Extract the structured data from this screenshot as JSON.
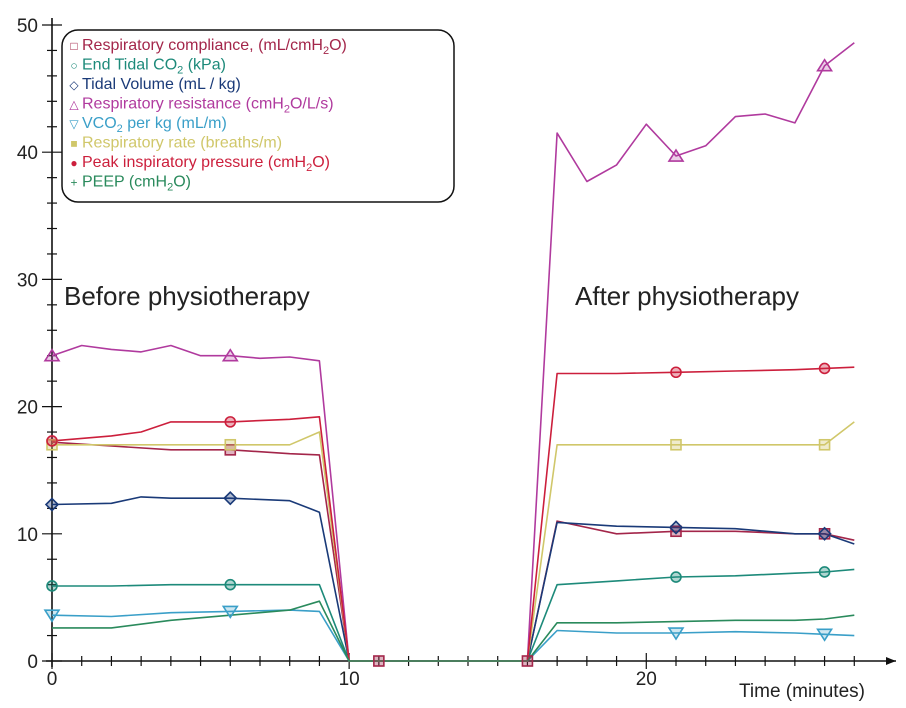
{
  "chart_data": {
    "type": "line",
    "xlabel": "Time (minutes)",
    "ylabel": "",
    "xlim": [
      0,
      28
    ],
    "ylim": [
      0,
      50
    ],
    "x_tick_labels": [
      {
        "value": 0,
        "label": "0"
      },
      {
        "value": 10,
        "label": "10"
      },
      {
        "value": 20,
        "label": "20"
      }
    ],
    "y_tick_labels": [
      {
        "value": 0,
        "label": "0"
      },
      {
        "value": 10,
        "label": "10"
      },
      {
        "value": 20,
        "label": "20"
      },
      {
        "value": 30,
        "label": "30"
      },
      {
        "value": 40,
        "label": "40"
      },
      {
        "value": 50,
        "label": "50"
      }
    ],
    "annotations": [
      "Before physiotherapy",
      "After physiotherapy"
    ],
    "legend_position": "top-left",
    "grid": false,
    "series": [
      {
        "name": "Respiratory compliance, (mL/cmH2O)",
        "color": "#a3264a",
        "marker": "square",
        "points": [
          [
            0,
            17.2
          ],
          [
            2,
            16.9
          ],
          [
            4,
            16.6
          ],
          [
            6,
            16.6
          ],
          [
            8,
            16.3
          ],
          [
            9,
            16.2
          ],
          [
            10,
            0
          ],
          [
            11,
            0
          ],
          [
            16,
            0
          ],
          [
            17,
            11
          ],
          [
            19,
            10
          ],
          [
            21,
            10.2
          ],
          [
            23,
            10.2
          ],
          [
            25,
            10
          ],
          [
            26,
            10
          ],
          [
            27,
            9.5
          ]
        ],
        "marked": [
          [
            6,
            16.6
          ],
          [
            21,
            10.2
          ],
          [
            26,
            10
          ]
        ]
      },
      {
        "name": "End Tidal CO2 (kPa)",
        "color": "#1d8a7a",
        "marker": "circle",
        "points": [
          [
            0,
            5.9
          ],
          [
            2,
            5.9
          ],
          [
            4,
            6
          ],
          [
            6,
            6
          ],
          [
            8,
            6
          ],
          [
            9,
            6
          ],
          [
            10,
            0
          ],
          [
            11,
            0
          ],
          [
            16,
            0
          ],
          [
            17,
            6
          ],
          [
            19,
            6.3
          ],
          [
            21,
            6.6
          ],
          [
            23,
            6.7
          ],
          [
            25,
            6.9
          ],
          [
            26,
            7
          ],
          [
            27,
            7.2
          ]
        ],
        "marked": [
          [
            0,
            5.9
          ],
          [
            6,
            6
          ],
          [
            21,
            6.6
          ],
          [
            26,
            7
          ]
        ]
      },
      {
        "name": "Tidal Volume (mL / kg)",
        "color": "#1a3a78",
        "marker": "diamond",
        "points": [
          [
            0,
            12.3
          ],
          [
            2,
            12.4
          ],
          [
            3,
            12.9
          ],
          [
            4,
            12.8
          ],
          [
            6,
            12.8
          ],
          [
            8,
            12.6
          ],
          [
            9,
            11.7
          ],
          [
            10,
            0
          ],
          [
            11,
            0
          ],
          [
            16,
            0
          ],
          [
            17,
            10.9
          ],
          [
            19,
            10.6
          ],
          [
            21,
            10.5
          ],
          [
            23,
            10.4
          ],
          [
            25,
            10
          ],
          [
            26,
            10
          ],
          [
            27,
            9.2
          ]
        ],
        "marked": [
          [
            0,
            12.3
          ],
          [
            6,
            12.8
          ],
          [
            21,
            10.5
          ],
          [
            26,
            10
          ]
        ]
      },
      {
        "name": "Respiratory resistance (cmH2O/L/s)",
        "color": "#b03a9e",
        "marker": "triangle-up",
        "points": [
          [
            0,
            24
          ],
          [
            1,
            24.8
          ],
          [
            2,
            24.5
          ],
          [
            3,
            24.3
          ],
          [
            4,
            24.8
          ],
          [
            5,
            24
          ],
          [
            6,
            24
          ],
          [
            7,
            23.8
          ],
          [
            8,
            23.9
          ],
          [
            9,
            23.6
          ],
          [
            10,
            0
          ],
          [
            11,
            0
          ],
          [
            16,
            0
          ],
          [
            17,
            41.5
          ],
          [
            18,
            37.7
          ],
          [
            19,
            39
          ],
          [
            20,
            42.2
          ],
          [
            21,
            39.7
          ],
          [
            22,
            40.5
          ],
          [
            23,
            42.8
          ],
          [
            24,
            43
          ],
          [
            25,
            42.3
          ],
          [
            26,
            46.8
          ],
          [
            27,
            48.6
          ]
        ],
        "marked": [
          [
            0,
            24
          ],
          [
            6,
            24
          ],
          [
            21,
            39.7
          ],
          [
            26,
            46.8
          ]
        ]
      },
      {
        "name": "VCO2 per kg (mL/m)",
        "color": "#3a9fc8",
        "marker": "triangle-down",
        "points": [
          [
            0,
            3.6
          ],
          [
            2,
            3.5
          ],
          [
            4,
            3.8
          ],
          [
            6,
            3.9
          ],
          [
            8,
            4
          ],
          [
            9,
            3.9
          ],
          [
            10,
            0
          ],
          [
            11,
            0
          ],
          [
            16,
            0
          ],
          [
            17,
            2.4
          ],
          [
            19,
            2.2
          ],
          [
            21,
            2.2
          ],
          [
            23,
            2.3
          ],
          [
            25,
            2.2
          ],
          [
            26,
            2.1
          ],
          [
            27,
            2
          ]
        ],
        "marked": [
          [
            0,
            3.6
          ],
          [
            6,
            3.9
          ],
          [
            21,
            2.2
          ],
          [
            26,
            2.1
          ]
        ]
      },
      {
        "name": "Respiratory rate  (breaths/m)",
        "color": "#d0c76a",
        "marker": "square",
        "points": [
          [
            0,
            17
          ],
          [
            2,
            17
          ],
          [
            4,
            17
          ],
          [
            6,
            17
          ],
          [
            8,
            17
          ],
          [
            9,
            18
          ],
          [
            10,
            0
          ],
          [
            11,
            0
          ],
          [
            16,
            0
          ],
          [
            17,
            17
          ],
          [
            19,
            17
          ],
          [
            21,
            17
          ],
          [
            23,
            17
          ],
          [
            25,
            17
          ],
          [
            26,
            17
          ],
          [
            27,
            18.8
          ]
        ],
        "marked": [
          [
            0,
            17
          ],
          [
            6,
            17
          ],
          [
            21,
            17
          ],
          [
            26,
            17
          ]
        ]
      },
      {
        "name": "Peak inspiratory pressure (cmH2O)",
        "color": "#cc1f3c",
        "marker": "circle",
        "points": [
          [
            0,
            17.3
          ],
          [
            2,
            17.7
          ],
          [
            3,
            18
          ],
          [
            4,
            18.8
          ],
          [
            6,
            18.8
          ],
          [
            8,
            19
          ],
          [
            9,
            19.2
          ],
          [
            10,
            0
          ],
          [
            11,
            0
          ],
          [
            16,
            0
          ],
          [
            17,
            22.6
          ],
          [
            19,
            22.6
          ],
          [
            21,
            22.7
          ],
          [
            23,
            22.8
          ],
          [
            25,
            22.9
          ],
          [
            26,
            23
          ],
          [
            27,
            23.1
          ]
        ],
        "marked": [
          [
            0,
            17.3
          ],
          [
            6,
            18.8
          ],
          [
            21,
            22.7
          ],
          [
            26,
            23
          ]
        ]
      },
      {
        "name": "PEEP (cmH2O)",
        "color": "#2a8a5c",
        "marker": "cross",
        "points": [
          [
            0,
            2.6
          ],
          [
            2,
            2.6
          ],
          [
            4,
            3.2
          ],
          [
            6,
            3.6
          ],
          [
            8,
            4
          ],
          [
            9,
            4.7
          ],
          [
            10,
            0
          ],
          [
            11,
            0
          ],
          [
            16,
            0
          ],
          [
            17,
            3
          ],
          [
            19,
            3
          ],
          [
            21,
            3.1
          ],
          [
            23,
            3.2
          ],
          [
            25,
            3.2
          ],
          [
            26,
            3.3
          ],
          [
            27,
            3.6
          ]
        ],
        "marked": []
      }
    ]
  },
  "legend": {
    "items": [
      {
        "symbol": "□",
        "color": "#a3264a",
        "text": "Respiratory compliance, (mL/cmH",
        "sub": "2",
        "tail": "O)"
      },
      {
        "symbol": "○",
        "color": "#1d8a7a",
        "text": "End Tidal CO",
        "sub": "2",
        "tail": " (kPa)"
      },
      {
        "symbol": "◇",
        "color": "#1a3a78",
        "text": "Tidal Volume (mL / kg)",
        "sub": "",
        "tail": ""
      },
      {
        "symbol": "△",
        "color": "#b03a9e",
        "text": "Respiratory resistance (cmH",
        "sub": "2",
        "tail": "O/L/s)"
      },
      {
        "symbol": "▽",
        "color": "#3a9fc8",
        "text": "VCO",
        "sub": "2",
        "tail": " per kg (mL/m)"
      },
      {
        "symbol": "■",
        "color": "#d0c76a",
        "text": "Respiratory rate  (breaths/m)",
        "sub": "",
        "tail": ""
      },
      {
        "symbol": "●",
        "color": "#cc1f3c",
        "text": "Peak inspiratory pressure (cmH",
        "sub": "2",
        "tail": "O)"
      },
      {
        "symbol": "+",
        "color": "#2a8a5c",
        "text": "PEEP (cmH",
        "sub": "2",
        "tail": "O)"
      }
    ]
  }
}
